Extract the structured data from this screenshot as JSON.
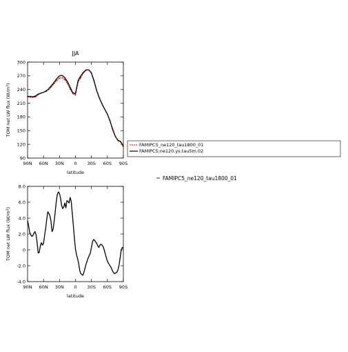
{
  "chart_data": [
    {
      "type": "line",
      "title": "JJA",
      "xlabel": "latitude",
      "ylabel": "TOM net LW flux (W/m^2)",
      "xlim": [
        90,
        -90
      ],
      "ylim": [
        90,
        300
      ],
      "xticks": [
        90,
        60,
        30,
        0,
        -30,
        -60,
        -90
      ],
      "xtick_labels": [
        "90N",
        "60N",
        "30N",
        "0",
        "30S",
        "60S",
        "90S"
      ],
      "yticks": [
        90,
        120,
        150,
        180,
        210,
        240,
        270,
        300
      ],
      "ytick_labels": [
        "90",
        "120",
        "150",
        "180",
        "210",
        "240",
        "270",
        "300"
      ],
      "legend_position": "right",
      "x": [
        90,
        85,
        80,
        75,
        70,
        65,
        60,
        55,
        50,
        45,
        40,
        35,
        30,
        25,
        20,
        15,
        10,
        5,
        0,
        -5,
        -10,
        -15,
        -20,
        -25,
        -30,
        -35,
        -40,
        -45,
        -50,
        -55,
        -60,
        -65,
        -70,
        -75,
        -80,
        -85,
        -90
      ],
      "series": [
        {
          "name": "FAMIPC5_ne120_tau1800_01",
          "color": "#cc0000",
          "style": "dashed-marker",
          "values": [
            224,
            223,
            223,
            224,
            229,
            232,
            234,
            236,
            240,
            246,
            253,
            260,
            265,
            266,
            262,
            253,
            241,
            231,
            228,
            256,
            266,
            276,
            282,
            283,
            277,
            260,
            238,
            222,
            209,
            197,
            186,
            172,
            154,
            138,
            128,
            125,
            115
          ]
        },
        {
          "name": "FAMIPC5.ne120.ys.tau5m.02",
          "color": "#000000",
          "style": "solid",
          "values": [
            225,
            225,
            224,
            226,
            230,
            232,
            234,
            237,
            242,
            249,
            256,
            264,
            270,
            271,
            266,
            257,
            245,
            233,
            231,
            260,
            270,
            278,
            283,
            283,
            276,
            258,
            237,
            221,
            208,
            197,
            186,
            171,
            152,
            137,
            129,
            126,
            116
          ]
        }
      ]
    },
    {
      "type": "line",
      "title": "",
      "xlabel": "latitude",
      "ylabel": "TOM net LW flux (W/m^2)",
      "xlim": [
        90,
        -90
      ],
      "ylim": [
        -4,
        8
      ],
      "xticks": [
        90,
        60,
        30,
        0,
        -30,
        -60,
        -90
      ],
      "xtick_labels": [
        "90N",
        "60N",
        "30N",
        "0",
        "30S",
        "60S",
        "90S"
      ],
      "yticks": [
        -4,
        -2,
        0,
        2,
        4,
        6,
        8
      ],
      "ytick_labels": [
        "-4.0",
        "-2.0",
        "0",
        "2.0",
        "4.0",
        "6.0",
        "8.0"
      ],
      "annotation": "FAMIPC5_ne120_tau1800_01",
      "x": [
        90,
        88,
        86,
        84,
        82,
        80,
        78,
        76,
        74,
        72,
        70,
        68,
        66,
        64,
        62,
        60,
        58,
        56,
        54,
        52,
        50,
        48,
        46,
        44,
        42,
        40,
        38,
        36,
        34,
        32,
        30,
        28,
        26,
        24,
        22,
        20,
        18,
        16,
        14,
        12,
        10,
        8,
        6,
        4,
        2,
        0,
        -2,
        -4,
        -6,
        -8,
        -10,
        -12,
        -14,
        -16,
        -18,
        -20,
        -22,
        -24,
        -26,
        -28,
        -30,
        -32,
        -34,
        -36,
        -38,
        -40,
        -42,
        -44,
        -46,
        -48,
        -50,
        -52,
        -54,
        -56,
        -58,
        -60,
        -62,
        -64,
        -66,
        -68,
        -70,
        -72,
        -74,
        -76,
        -78,
        -80,
        -82,
        -84,
        -86,
        -88,
        -90
      ],
      "series": [
        {
          "name": "",
          "color": "#000000",
          "style": "solid",
          "values": [
            3.7,
            3.0,
            2.2,
            1.9,
            1.7,
            1.8,
            2.1,
            2.3,
            1.9,
            0.9,
            -0.4,
            -0.3,
            0.5,
            0.9,
            0.6,
            0.8,
            1.8,
            2.7,
            3.8,
            4.8,
            4.6,
            4.3,
            3.6,
            2.3,
            2.6,
            3.6,
            4.8,
            6.1,
            7.0,
            7.3,
            7.1,
            6.5,
            5.6,
            5.2,
            5.4,
            5.9,
            5.3,
            6.2,
            6.1,
            5.9,
            6.6,
            6.1,
            4.6,
            3.1,
            1.5,
            0.1,
            -0.6,
            -1.1,
            -1.7,
            -2.6,
            -3.0,
            -3.1,
            -3.2,
            -2.8,
            -2.3,
            -1.8,
            -1.4,
            -1.0,
            -0.7,
            -0.4,
            0.3,
            1.0,
            1.3,
            1.2,
            1.0,
            0.8,
            0.5,
            0.3,
            0.6,
            0.7,
            0.6,
            0.4,
            0.0,
            -0.5,
            -1.0,
            -1.4,
            -1.7,
            -1.9,
            -2.1,
            -2.4,
            -2.7,
            -2.9,
            -3.0,
            -2.9,
            -2.8,
            -2.5,
            -1.9,
            -1.0,
            0.0,
            0.3,
            0.2
          ]
        }
      ]
    }
  ]
}
